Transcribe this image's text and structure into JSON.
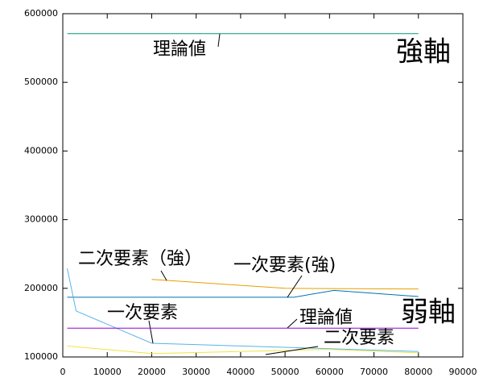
{
  "chart_data": {
    "type": "line",
    "xlim": [
      0,
      90000
    ],
    "xticks": [
      0,
      10000,
      20000,
      30000,
      40000,
      50000,
      60000,
      70000,
      80000,
      90000
    ],
    "ylim": [
      100000,
      600000
    ],
    "yticks": [
      100000,
      200000,
      300000,
      400000,
      500000,
      600000
    ],
    "series": [
      {
        "name": "理論値",
        "color": "#009e73",
        "x": [
          1000,
          80000
        ],
        "values": [
          571000,
          571000
        ]
      },
      {
        "name": "二次要素（強）",
        "color": "#e69f00",
        "x": [
          20000,
          50000,
          80000
        ],
        "values": [
          213000,
          200000,
          199000
        ]
      },
      {
        "name": "一次要素(強)",
        "color": "#0072b2",
        "x": [
          1000,
          52000,
          61000,
          80000
        ],
        "values": [
          187000,
          187000,
          197000,
          188000
        ]
      },
      {
        "name": "一次要素",
        "color": "#56b4e9",
        "x": [
          1000,
          3000,
          20000,
          80000
        ],
        "values": [
          229000,
          167000,
          120000,
          108000
        ]
      },
      {
        "name": "理論値",
        "color": "#9400d3",
        "x": [
          1000,
          80000
        ],
        "values": [
          142000,
          142000
        ]
      },
      {
        "name": "二次要素",
        "color": "#f0e442",
        "x": [
          1000,
          20000,
          60000,
          80000
        ],
        "values": [
          116000,
          105000,
          111000,
          106000
        ]
      }
    ],
    "annotations": [
      "強軸",
      "弱軸"
    ]
  }
}
